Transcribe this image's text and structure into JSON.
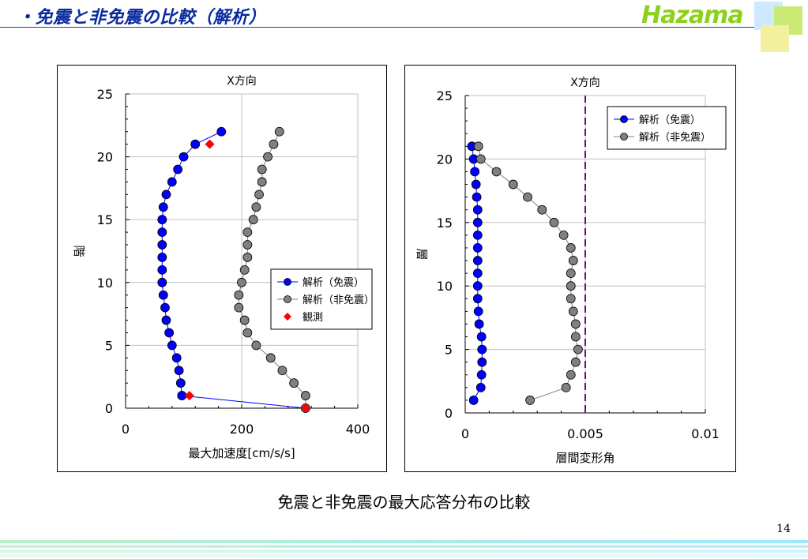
{
  "slide": {
    "title": "・免震と非免震の比較（解析）",
    "logo": "Hazama",
    "caption": "免震と非免震の最大応答分布の比較",
    "page_number": "14"
  },
  "colors": {
    "seismic_isolated": "#0000ff",
    "non_isolated": "#808080",
    "observed": "#ff0000",
    "limit_line": "#800080",
    "title": "#0a2a9e",
    "logo": "#8cd11a"
  },
  "chart_data": [
    {
      "type": "scatter",
      "title": "X方向",
      "xlabel": "最大加速度[cm/s/s]",
      "ylabel": "階",
      "xlim": [
        0,
        400
      ],
      "ylim": [
        0,
        25
      ],
      "xticks": [
        0,
        200,
        400
      ],
      "yticks": [
        0,
        5,
        10,
        15,
        20,
        25
      ],
      "grid": true,
      "legend_position": "center-right",
      "series": [
        {
          "name": "解析（免震）",
          "marker": "circle",
          "color": "#0000ff",
          "points": [
            [
              310,
              0
            ],
            [
              97,
              1
            ],
            [
              95,
              2
            ],
            [
              92,
              3
            ],
            [
              88,
              4
            ],
            [
              80,
              5
            ],
            [
              75,
              6
            ],
            [
              70,
              7
            ],
            [
              68,
              8
            ],
            [
              65,
              9
            ],
            [
              63,
              10
            ],
            [
              63,
              11
            ],
            [
              63,
              12
            ],
            [
              63,
              13
            ],
            [
              63,
              14
            ],
            [
              63,
              15
            ],
            [
              65,
              16
            ],
            [
              70,
              17
            ],
            [
              80,
              18
            ],
            [
              90,
              19
            ],
            [
              100,
              20
            ],
            [
              120,
              21
            ],
            [
              165,
              22
            ]
          ]
        },
        {
          "name": "解析（非免震）",
          "marker": "circle",
          "color": "#808080",
          "points": [
            [
              310,
              0
            ],
            [
              310,
              1
            ],
            [
              290,
              2
            ],
            [
              270,
              3
            ],
            [
              250,
              4
            ],
            [
              225,
              5
            ],
            [
              210,
              6
            ],
            [
              205,
              7
            ],
            [
              195,
              8
            ],
            [
              195,
              9
            ],
            [
              200,
              10
            ],
            [
              205,
              11
            ],
            [
              210,
              12
            ],
            [
              210,
              13
            ],
            [
              210,
              14
            ],
            [
              220,
              15
            ],
            [
              225,
              16
            ],
            [
              230,
              17
            ],
            [
              235,
              18
            ],
            [
              235,
              19
            ],
            [
              245,
              20
            ],
            [
              255,
              21
            ],
            [
              265,
              22
            ]
          ]
        },
        {
          "name": "観測",
          "marker": "diamond",
          "color": "#ff0000",
          "points": [
            [
              310,
              0
            ],
            [
              110,
              1
            ],
            [
              145,
              21
            ]
          ]
        }
      ]
    },
    {
      "type": "scatter",
      "title": "X方向",
      "xlabel": "層間変形角",
      "ylabel": "層",
      "xlim": [
        0,
        0.01
      ],
      "ylim": [
        0,
        25
      ],
      "xticks": [
        "0",
        "0.005",
        "0.01"
      ],
      "yticks": [
        0,
        5,
        10,
        15,
        20,
        25
      ],
      "grid": true,
      "legend_position": "top-right",
      "reference_line_x": 0.005,
      "series": [
        {
          "name": "解析（免震）",
          "marker": "circle",
          "color": "#0000ff",
          "points": [
            [
              0.00035,
              1
            ],
            [
              0.00065,
              2
            ],
            [
              0.00068,
              3
            ],
            [
              0.0007,
              4
            ],
            [
              0.0007,
              5
            ],
            [
              0.00068,
              6
            ],
            [
              0.00058,
              7
            ],
            [
              0.00055,
              8
            ],
            [
              0.00052,
              9
            ],
            [
              0.00052,
              10
            ],
            [
              0.00052,
              11
            ],
            [
              0.00052,
              12
            ],
            [
              0.00052,
              13
            ],
            [
              0.00052,
              14
            ],
            [
              0.00052,
              15
            ],
            [
              0.00052,
              16
            ],
            [
              0.00048,
              17
            ],
            [
              0.00045,
              18
            ],
            [
              0.0004,
              19
            ],
            [
              0.00035,
              20
            ],
            [
              0.00028,
              21
            ]
          ]
        },
        {
          "name": "解析（非免震）",
          "marker": "circle",
          "color": "#808080",
          "points": [
            [
              0.0027,
              1
            ],
            [
              0.0042,
              2
            ],
            [
              0.0044,
              3
            ],
            [
              0.0046,
              4
            ],
            [
              0.0047,
              5
            ],
            [
              0.0046,
              6
            ],
            [
              0.0046,
              7
            ],
            [
              0.0045,
              8
            ],
            [
              0.0044,
              9
            ],
            [
              0.0044,
              10
            ],
            [
              0.0044,
              11
            ],
            [
              0.0045,
              12
            ],
            [
              0.0044,
              13
            ],
            [
              0.0041,
              14
            ],
            [
              0.0037,
              15
            ],
            [
              0.0032,
              16
            ],
            [
              0.0026,
              17
            ],
            [
              0.002,
              18
            ],
            [
              0.0013,
              19
            ],
            [
              0.00065,
              20
            ],
            [
              0.00055,
              21
            ]
          ]
        }
      ]
    }
  ]
}
